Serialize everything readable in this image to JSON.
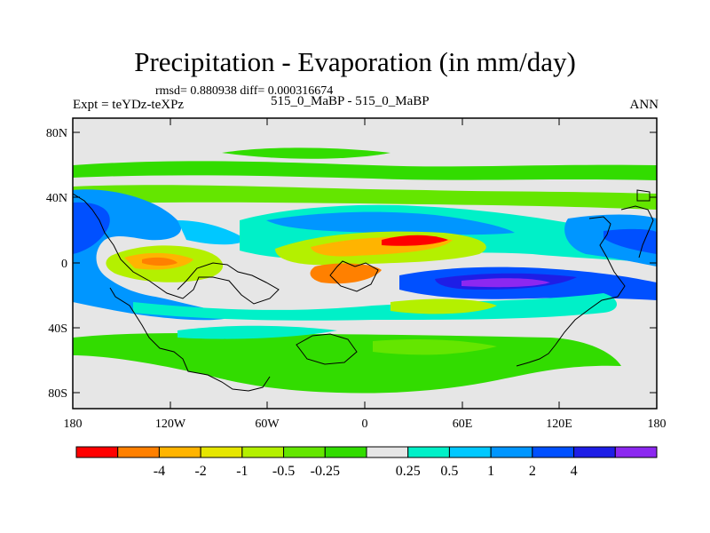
{
  "title": "Precipitation - Evaporation (in mm/day)",
  "stats": "rmsd= 0.880938 diff= 0.000316674",
  "expt": "Expt = teYDz-teXPz",
  "comparison": "515_0_MaBP - 515_0_MaBP",
  "season": "ANN",
  "lat_labels": [
    "80N",
    "40N",
    "0",
    "40S",
    "80S"
  ],
  "lon_labels": [
    "180",
    "120W",
    "60W",
    "0",
    "60E",
    "120E",
    "180"
  ],
  "colorbar": {
    "colors": [
      "#ff0000",
      "#ff8000",
      "#ffb400",
      "#e6e600",
      "#b4f000",
      "#64e600",
      "#32dc00",
      "#e6e6e6",
      "#00f0c8",
      "#00c8ff",
      "#0096ff",
      "#0050ff",
      "#1e1ee6",
      "#8c28f0"
    ],
    "labels": [
      "-4",
      "-2",
      "-1",
      "-0.5",
      "-0.25",
      "0.25",
      "0.5",
      "1",
      "2",
      "4"
    ]
  },
  "colors": {
    "background": "#e6e6e6",
    "frame": "#000000"
  }
}
